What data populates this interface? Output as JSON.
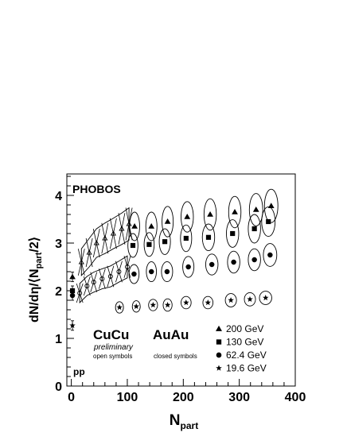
{
  "chart_data": {
    "type": "scatter",
    "title": "PHOBOS",
    "xlabel": "N",
    "xlabel_sub": "part",
    "ylabel": "dN/dη/⟨N",
    "ylabel_sub": "part",
    "ylabel_tail": "/2⟩",
    "xlim": [
      -8,
      400
    ],
    "ylim": [
      0,
      4.45
    ],
    "x_ticks": [
      0,
      100,
      200,
      300,
      400
    ],
    "y_ticks": [
      0,
      1,
      2,
      3,
      4
    ],
    "grid": false,
    "labels": {
      "cucu": "CuCu",
      "preliminary": "preliminary",
      "open_symbols": "open symbols",
      "auau": "AuAu",
      "closed_symbols": "closed symbols",
      "pp": "pp"
    },
    "legend": [
      {
        "marker": "triangle",
        "label": "200 GeV"
      },
      {
        "marker": "square",
        "label": "130 GeV"
      },
      {
        "marker": "circle",
        "label": "62.4 GeV"
      },
      {
        "marker": "star",
        "label": "19.6 GeV"
      }
    ],
    "series": [
      {
        "name": "200 GeV",
        "marker": "triangle",
        "system": "AuAu",
        "x": [
          113,
          143,
          172,
          207,
          248,
          292,
          330,
          357
        ],
        "y": [
          3.35,
          3.35,
          3.45,
          3.55,
          3.6,
          3.65,
          3.7,
          3.78
        ],
        "ex": [
          9,
          10,
          10,
          11,
          11,
          11,
          12,
          12
        ],
        "ey": [
          0.3,
          0.3,
          0.32,
          0.32,
          0.33,
          0.33,
          0.34,
          0.35
        ]
      },
      {
        "name": "130 GeV",
        "marker": "square",
        "system": "AuAu",
        "x": [
          110,
          139,
          167,
          205,
          245,
          288,
          327,
          352
        ],
        "y": [
          2.95,
          2.97,
          3.03,
          3.1,
          3.12,
          3.2,
          3.3,
          3.45
        ],
        "ex": [
          9,
          9,
          10,
          10,
          11,
          11,
          11,
          12
        ],
        "ey": [
          0.25,
          0.25,
          0.27,
          0.28,
          0.28,
          0.29,
          0.3,
          0.31
        ]
      },
      {
        "name": "62.4 GeV",
        "marker": "circle",
        "system": "AuAu",
        "x": [
          112,
          143,
          171,
          209,
          251,
          290,
          327,
          355
        ],
        "y": [
          2.35,
          2.4,
          2.4,
          2.5,
          2.55,
          2.6,
          2.65,
          2.75
        ],
        "ex": [
          9,
          9,
          10,
          10,
          11,
          11,
          11,
          12
        ],
        "ey": [
          0.2,
          0.21,
          0.21,
          0.22,
          0.22,
          0.23,
          0.23,
          0.24
        ]
      },
      {
        "name": "19.6 GeV",
        "marker": "star",
        "system": "AuAu",
        "x": [
          86,
          116,
          146,
          172,
          205,
          244,
          285,
          319,
          347
        ],
        "y": [
          1.65,
          1.67,
          1.7,
          1.7,
          1.75,
          1.75,
          1.8,
          1.82,
          1.85
        ],
        "ex": [
          7,
          7,
          8,
          8,
          9,
          9,
          10,
          10,
          11
        ],
        "ey": [
          0.12,
          0.12,
          0.12,
          0.13,
          0.13,
          0.13,
          0.14,
          0.14,
          0.14
        ]
      },
      {
        "name": "200 GeV",
        "marker": "triangle-open",
        "system": "CuCu",
        "x": [
          18,
          32,
          45,
          60,
          75,
          90,
          103
        ],
        "y": [
          2.6,
          2.8,
          3.0,
          3.1,
          3.2,
          3.3,
          3.4
        ],
        "ex": [
          3,
          4,
          4,
          5,
          5,
          6,
          6
        ],
        "ey": [
          0.28,
          0.3,
          0.3,
          0.32,
          0.32,
          0.33,
          0.34
        ]
      },
      {
        "name": "62.4 GeV",
        "marker": "circle-open",
        "system": "CuCu",
        "x": [
          15,
          28,
          40,
          55,
          70,
          85,
          100
        ],
        "y": [
          1.95,
          2.1,
          2.18,
          2.25,
          2.3,
          2.4,
          2.5
        ],
        "ex": [
          3,
          4,
          4,
          5,
          5,
          6,
          6
        ],
        "ey": [
          0.2,
          0.2,
          0.21,
          0.21,
          0.22,
          0.22,
          0.23
        ]
      },
      {
        "name": "200 GeV",
        "marker": "triangle",
        "system": "pp",
        "x": [
          2
        ],
        "y": [
          2.29
        ],
        "ex": [
          0
        ],
        "ey": [
          0.1
        ]
      },
      {
        "name": "130 GeV",
        "marker": "square",
        "system": "pp",
        "x": [
          2
        ],
        "y": [
          2.0
        ],
        "ex": [
          0
        ],
        "ey": [
          0.1
        ]
      },
      {
        "name": "62.4 GeV",
        "marker": "circle",
        "system": "pp",
        "x": [
          2
        ],
        "y": [
          1.9
        ],
        "ex": [
          0
        ],
        "ey": [
          0.1
        ]
      },
      {
        "name": "19.6 GeV",
        "marker": "star",
        "system": "pp",
        "x": [
          2
        ],
        "y": [
          1.27
        ],
        "ex": [
          0
        ],
        "ey": [
          0.1
        ]
      }
    ]
  }
}
